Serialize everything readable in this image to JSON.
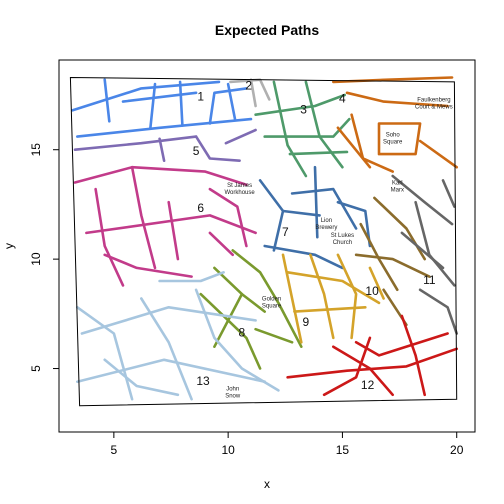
{
  "chart_data": {
    "type": "map",
    "title": "Expected Paths",
    "xlabel": "x",
    "ylabel": "y",
    "xlim": [
      2.6,
      20.8
    ],
    "ylim": [
      2.1,
      19.1
    ],
    "x_ticks": [
      5,
      10,
      15,
      20
    ],
    "y_ticks": [
      5,
      10,
      15
    ],
    "boundary": [
      [
        3.1,
        18.3
      ],
      [
        19.9,
        18.1
      ],
      [
        20.0,
        3.6
      ],
      [
        3.5,
        3.3
      ]
    ],
    "regions": [
      {
        "label": "1",
        "color": "#4a86e8",
        "label_pos": [
          8.8,
          17.4
        ],
        "segments": [
          [
            [
              3.2,
              16.8
            ],
            [
              6.2,
              17.8
            ],
            [
              9.6,
              18.1
            ]
          ],
          [
            [
              3.4,
              15.6
            ],
            [
              7.0,
              16.0
            ],
            [
              11.0,
              16.4
            ]
          ],
          [
            [
              4.8,
              16.3
            ],
            [
              4.6,
              18.2
            ]
          ],
          [
            [
              6.6,
              16.0
            ],
            [
              6.8,
              18.0
            ]
          ],
          [
            [
              8.0,
              16.1
            ],
            [
              7.9,
              18.1
            ]
          ],
          [
            [
              9.2,
              16.2
            ],
            [
              9.4,
              17.6
            ],
            [
              10.8,
              17.8
            ]
          ],
          [
            [
              5.4,
              17.2
            ],
            [
              8.6,
              17.6
            ]
          ],
          [
            [
              10.3,
              16.4
            ],
            [
              10.0,
              18.0
            ]
          ]
        ]
      },
      {
        "label": "2",
        "color": "#b0b0b0",
        "label_pos": [
          10.9,
          17.9
        ],
        "segments": [
          [
            [
              10.1,
              18.1
            ],
            [
              11.4,
              18.2
            ],
            [
              11.8,
              17.3
            ]
          ],
          [
            [
              11.0,
              18.2
            ],
            [
              11.2,
              17.0
            ]
          ]
        ]
      },
      {
        "label": "3",
        "color": "#4e9a6a",
        "label_pos": [
          13.3,
          16.8
        ],
        "segments": [
          [
            [
              11.2,
              16.6
            ],
            [
              13.8,
              17.0
            ],
            [
              15.1,
              17.5
            ]
          ],
          [
            [
              12.0,
              18.1
            ],
            [
              12.6,
              15.2
            ],
            [
              13.4,
              13.8
            ]
          ],
          [
            [
              13.4,
              18.1
            ],
            [
              14.0,
              15.6
            ],
            [
              15.0,
              14.2
            ]
          ],
          [
            [
              11.6,
              15.6
            ],
            [
              14.6,
              15.6
            ],
            [
              15.3,
              16.4
            ]
          ],
          [
            [
              12.7,
              14.8
            ],
            [
              15.2,
              14.9
            ]
          ]
        ]
      },
      {
        "label": "4",
        "color": "#cc6a14",
        "label_pos": [
          15.0,
          17.3
        ],
        "segments": [
          [
            [
              14.6,
              18.1
            ],
            [
              17.0,
              18.2
            ],
            [
              19.8,
              18.3
            ]
          ],
          [
            [
              15.2,
              17.6
            ],
            [
              16.8,
              17.2
            ],
            [
              19.6,
              17.0
            ]
          ],
          [
            [
              15.4,
              16.6
            ],
            [
              15.9,
              14.6
            ],
            [
              17.2,
              14.0
            ]
          ],
          [
            [
              16.6,
              16.2
            ],
            [
              18.4,
              16.2
            ],
            [
              18.2,
              14.8
            ],
            [
              16.6,
              14.8
            ],
            [
              16.6,
              16.2
            ]
          ],
          [
            [
              18.4,
              15.4
            ],
            [
              20.0,
              14.2
            ]
          ],
          [
            [
              14.8,
              16.0
            ],
            [
              16.2,
              14.2
            ]
          ]
        ]
      },
      {
        "label": "5",
        "color": "#7e6bb3",
        "label_pos": [
          8.6,
          14.9
        ],
        "segments": [
          [
            [
              3.3,
              15.0
            ],
            [
              6.2,
              15.3
            ],
            [
              8.6,
              15.6
            ]
          ],
          [
            [
              7.0,
              15.5
            ],
            [
              7.2,
              14.5
            ]
          ],
          [
            [
              8.6,
              15.6
            ],
            [
              9.2,
              14.6
            ],
            [
              10.5,
              14.5
            ]
          ],
          [
            [
              9.9,
              15.3
            ],
            [
              11.2,
              15.9
            ]
          ]
        ]
      },
      {
        "label": "6",
        "color": "#c23b8a",
        "label_pos": [
          8.8,
          12.3
        ],
        "segments": [
          [
            [
              3.3,
              13.5
            ],
            [
              5.8,
              14.2
            ],
            [
              9.0,
              14.0
            ],
            [
              10.8,
              13.4
            ]
          ],
          [
            [
              4.2,
              13.2
            ],
            [
              4.6,
              10.6
            ],
            [
              5.4,
              8.8
            ]
          ],
          [
            [
              5.8,
              14.2
            ],
            [
              6.2,
              12.0
            ],
            [
              6.8,
              9.6
            ]
          ],
          [
            [
              3.8,
              11.2
            ],
            [
              9.2,
              12.0
            ],
            [
              11.2,
              11.2
            ]
          ],
          [
            [
              4.6,
              10.2
            ],
            [
              6.0,
              9.6
            ],
            [
              8.4,
              9.2
            ]
          ],
          [
            [
              7.4,
              12.6
            ],
            [
              7.8,
              10.0
            ]
          ],
          [
            [
              9.2,
              13.2
            ],
            [
              10.4,
              12.4
            ],
            [
              10.8,
              10.6
            ]
          ],
          [
            [
              9.2,
              11.2
            ],
            [
              10.2,
              10.2
            ]
          ]
        ]
      },
      {
        "label": "7",
        "color": "#3f6fa8",
        "label_pos": [
          12.5,
          11.2
        ],
        "segments": [
          [
            [
              11.4,
              13.6
            ],
            [
              12.4,
              12.2
            ],
            [
              12.0,
              10.4
            ]
          ],
          [
            [
              12.8,
              13.0
            ],
            [
              14.6,
              13.2
            ],
            [
              15.6,
              11.4
            ]
          ],
          [
            [
              11.6,
              10.6
            ],
            [
              13.8,
              10.2
            ],
            [
              15.0,
              9.6
            ]
          ],
          [
            [
              13.8,
              14.2
            ],
            [
              13.9,
              11.0
            ]
          ],
          [
            [
              14.8,
              12.6
            ],
            [
              16.0,
              12.2
            ],
            [
              16.2,
              10.6
            ]
          ],
          [
            [
              12.4,
              12.2
            ],
            [
              14.0,
              12.0
            ]
          ]
        ]
      },
      {
        "label": "8",
        "color": "#7a9a2e",
        "label_pos": [
          10.6,
          6.6
        ],
        "segments": [
          [
            [
              10.2,
              10.4
            ],
            [
              11.4,
              9.4
            ],
            [
              12.2,
              8.0
            ],
            [
              13.2,
              6.0
            ]
          ],
          [
            [
              8.8,
              8.4
            ],
            [
              9.6,
              7.6
            ],
            [
              10.8,
              6.4
            ],
            [
              11.4,
              5.0
            ]
          ],
          [
            [
              9.4,
              9.6
            ],
            [
              10.6,
              8.4
            ],
            [
              11.6,
              7.6
            ]
          ],
          [
            [
              10.6,
              8.4
            ],
            [
              9.4,
              6.0
            ]
          ],
          [
            [
              11.2,
              6.8
            ],
            [
              12.8,
              6.2
            ]
          ]
        ]
      },
      {
        "label": "9",
        "color": "#d4a32a",
        "label_pos": [
          13.4,
          7.1
        ],
        "segments": [
          [
            [
              12.4,
              10.2
            ],
            [
              12.8,
              8.2
            ],
            [
              13.2,
              6.2
            ]
          ],
          [
            [
              13.6,
              10.2
            ],
            [
              14.2,
              8.4
            ],
            [
              14.6,
              6.4
            ]
          ],
          [
            [
              12.6,
              9.4
            ],
            [
              15.0,
              9.0
            ],
            [
              16.6,
              8.0
            ]
          ],
          [
            [
              12.9,
              7.6
            ],
            [
              16.0,
              7.8
            ]
          ],
          [
            [
              14.8,
              10.2
            ],
            [
              15.6,
              8.4
            ],
            [
              15.4,
              6.4
            ]
          ],
          [
            [
              16.2,
              9.6
            ],
            [
              16.8,
              8.2
            ]
          ]
        ]
      },
      {
        "label": "10",
        "color": "#8b6c2c",
        "label_pos": [
          16.3,
          8.5
        ],
        "segments": [
          [
            [
              15.8,
              11.6
            ],
            [
              16.6,
              10.0
            ],
            [
              17.4,
              8.6
            ]
          ],
          [
            [
              16.4,
              12.8
            ],
            [
              17.8,
              11.4
            ],
            [
              18.6,
              10.0
            ]
          ],
          [
            [
              15.6,
              10.2
            ],
            [
              17.2,
              10.0
            ],
            [
              18.8,
              9.2
            ]
          ],
          [
            [
              16.8,
              8.6
            ],
            [
              17.8,
              7.0
            ]
          ]
        ]
      },
      {
        "label": "11",
        "color": "#666666",
        "label_pos": [
          18.8,
          9.0
        ],
        "segments": [
          [
            [
              17.2,
              13.8
            ],
            [
              18.6,
              12.6
            ],
            [
              19.8,
              11.6
            ]
          ],
          [
            [
              18.2,
              12.6
            ],
            [
              18.8,
              10.2
            ],
            [
              19.9,
              8.8
            ]
          ],
          [
            [
              17.6,
              11.2
            ],
            [
              19.4,
              9.6
            ]
          ],
          [
            [
              18.4,
              8.6
            ],
            [
              19.6,
              7.8
            ],
            [
              20.0,
              6.6
            ]
          ],
          [
            [
              19.4,
              13.6
            ],
            [
              19.9,
              12.4
            ]
          ]
        ]
      },
      {
        "label": "12",
        "color": "#cc1818",
        "label_pos": [
          16.1,
          4.2
        ],
        "segments": [
          [
            [
              12.6,
              4.6
            ],
            [
              15.2,
              4.9
            ],
            [
              17.8,
              5.1
            ],
            [
              20.0,
              5.9
            ]
          ],
          [
            [
              14.6,
              6.0
            ],
            [
              16.2,
              5.0
            ],
            [
              17.2,
              3.8
            ]
          ],
          [
            [
              17.6,
              7.4
            ],
            [
              18.2,
              5.6
            ],
            [
              18.6,
              3.8
            ]
          ],
          [
            [
              15.6,
              6.2
            ],
            [
              16.6,
              5.6
            ],
            [
              19.6,
              6.6
            ]
          ],
          [
            [
              14.2,
              3.8
            ],
            [
              15.6,
              4.6
            ],
            [
              16.2,
              6.4
            ]
          ]
        ]
      },
      {
        "label": "13",
        "color": "#a7c6df",
        "label_pos": [
          8.9,
          4.4
        ],
        "segments": [
          [
            [
              3.4,
              7.8
            ],
            [
              5.0,
              6.6
            ],
            [
              5.8,
              3.6
            ]
          ],
          [
            [
              3.6,
              6.6
            ],
            [
              7.4,
              7.8
            ],
            [
              11.2,
              7.2
            ]
          ],
          [
            [
              3.4,
              4.4
            ],
            [
              7.2,
              5.4
            ],
            [
              11.6,
              4.4
            ]
          ],
          [
            [
              6.2,
              8.2
            ],
            [
              7.4,
              6.2
            ],
            [
              8.4,
              3.6
            ]
          ],
          [
            [
              8.6,
              8.6
            ],
            [
              9.4,
              6.4
            ],
            [
              10.6,
              5.0
            ],
            [
              12.2,
              4.0
            ]
          ],
          [
            [
              4.6,
              5.4
            ],
            [
              6.0,
              4.2
            ],
            [
              7.8,
              3.8
            ]
          ],
          [
            [
              7.0,
              9.0
            ],
            [
              8.8,
              9.0
            ],
            [
              9.8,
              9.4
            ]
          ]
        ]
      }
    ],
    "landmarks": [
      {
        "text": [
          "Faulkenberg",
          "Court & Mews"
        ],
        "pos": [
          19.0,
          17.2
        ]
      },
      {
        "text": [
          "Soho",
          "Square"
        ],
        "pos": [
          17.2,
          15.6
        ]
      },
      {
        "text": [
          "St James",
          "Workhouse"
        ],
        "pos": [
          10.5,
          13.3
        ]
      },
      {
        "text": [
          "Lion",
          "Brewery"
        ],
        "pos": [
          14.3,
          11.7
        ]
      },
      {
        "text": [
          "Karl",
          "Marx"
        ],
        "pos": [
          17.4,
          13.4
        ]
      },
      {
        "text": [
          "St Lukes",
          "Church"
        ],
        "pos": [
          15.0,
          11.0
        ]
      },
      {
        "text": [
          "Golden",
          "Square"
        ],
        "pos": [
          11.9,
          8.1
        ]
      },
      {
        "text": [
          "John",
          "Snow"
        ],
        "pos": [
          10.2,
          4.0
        ]
      }
    ]
  }
}
